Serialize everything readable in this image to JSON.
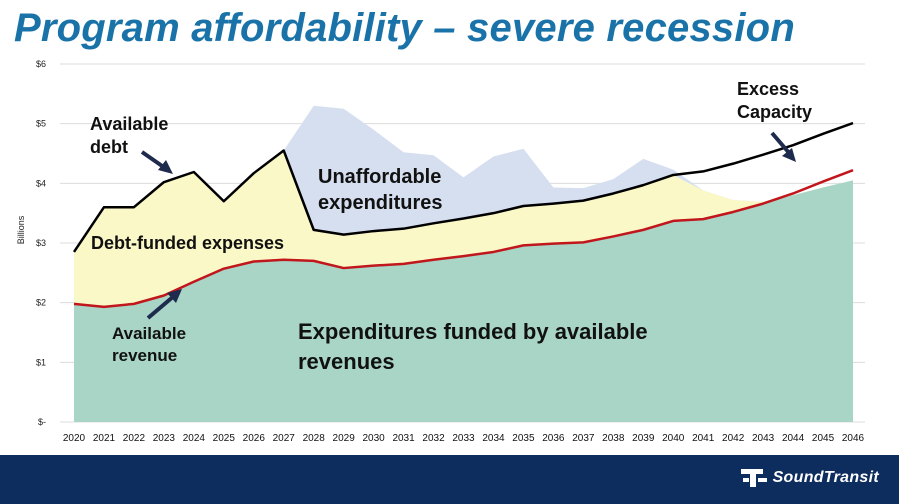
{
  "title": "Program affordability – severe recession",
  "chart_data": {
    "type": "area",
    "ylabel": "Billions",
    "ylim": [
      0,
      6
    ],
    "yticks": [
      0,
      1,
      2,
      3,
      4,
      5,
      6
    ],
    "ytick_labels": [
      "$-",
      "$1",
      "$2",
      "$3",
      "$4",
      "$5",
      "$6"
    ],
    "categories": [
      "2020",
      "2021",
      "2022",
      "2023",
      "2024",
      "2025",
      "2026",
      "2027",
      "2028",
      "2029",
      "2030",
      "2031",
      "2032",
      "2033",
      "2034",
      "2035",
      "2036",
      "2037",
      "2038",
      "2039",
      "2040",
      "2041",
      "2042",
      "2043",
      "2044",
      "2045",
      "2046"
    ],
    "series": [
      {
        "name": "Expenditures funded by available revenues",
        "kind": "area",
        "color": "#a8d5c6",
        "values": [
          1.98,
          1.93,
          1.98,
          2.12,
          2.35,
          2.57,
          2.69,
          2.72,
          2.7,
          2.58,
          2.62,
          2.65,
          2.72,
          2.78,
          2.85,
          2.96,
          2.99,
          3.01,
          3.11,
          3.22,
          3.37,
          3.4,
          3.52,
          3.66,
          3.8,
          3.93,
          4.05
        ]
      },
      {
        "name": "Debt-funded expenses",
        "kind": "area",
        "color": "#fbf8c8",
        "values": [
          2.85,
          3.6,
          3.6,
          4.02,
          4.19,
          3.7,
          4.17,
          4.55,
          3.22,
          3.14,
          3.2,
          3.24,
          3.33,
          3.41,
          3.5,
          3.62,
          3.66,
          3.71,
          3.83,
          3.97,
          4.14,
          3.88,
          3.72,
          3.69,
          3.8,
          3.93,
          4.05
        ]
      },
      {
        "name": "Unaffordable expenditures",
        "kind": "area",
        "color": "#d5dff0",
        "values": [
          2.85,
          3.6,
          3.6,
          4.02,
          4.19,
          3.7,
          4.17,
          4.55,
          5.3,
          5.25,
          4.9,
          4.52,
          4.47,
          4.1,
          4.45,
          4.58,
          3.93,
          3.92,
          4.07,
          4.41,
          4.23,
          3.88,
          3.72,
          3.69,
          3.8,
          3.93,
          4.05
        ]
      },
      {
        "name": "Available debt",
        "kind": "line",
        "color": "#000000",
        "values": [
          2.85,
          3.6,
          3.6,
          4.02,
          4.19,
          3.7,
          4.17,
          4.55,
          3.22,
          3.14,
          3.2,
          3.24,
          3.33,
          3.41,
          3.5,
          3.62,
          3.66,
          3.71,
          3.83,
          3.97,
          4.14,
          4.2,
          4.33,
          4.48,
          4.64,
          4.83,
          5.01
        ]
      },
      {
        "name": "Available revenue",
        "kind": "line",
        "color": "#c0161c",
        "values": [
          1.98,
          1.93,
          1.98,
          2.12,
          2.35,
          2.57,
          2.69,
          2.72,
          2.7,
          2.58,
          2.62,
          2.65,
          2.72,
          2.78,
          2.85,
          2.96,
          2.99,
          3.01,
          3.11,
          3.22,
          3.37,
          3.4,
          3.52,
          3.66,
          3.83,
          4.03,
          4.22
        ]
      }
    ],
    "annotations": [
      {
        "text": "Available debt"
      },
      {
        "text": "Unaffordable expenditures"
      },
      {
        "text": "Debt-funded expenses"
      },
      {
        "text": "Available revenue"
      },
      {
        "text": "Expenditures funded by available revenues"
      },
      {
        "text": "Excess Capacity"
      }
    ]
  },
  "footer": {
    "logo_text": "SoundTransit",
    "logo_color": "#ffffff",
    "background": "#0d2d5e"
  }
}
